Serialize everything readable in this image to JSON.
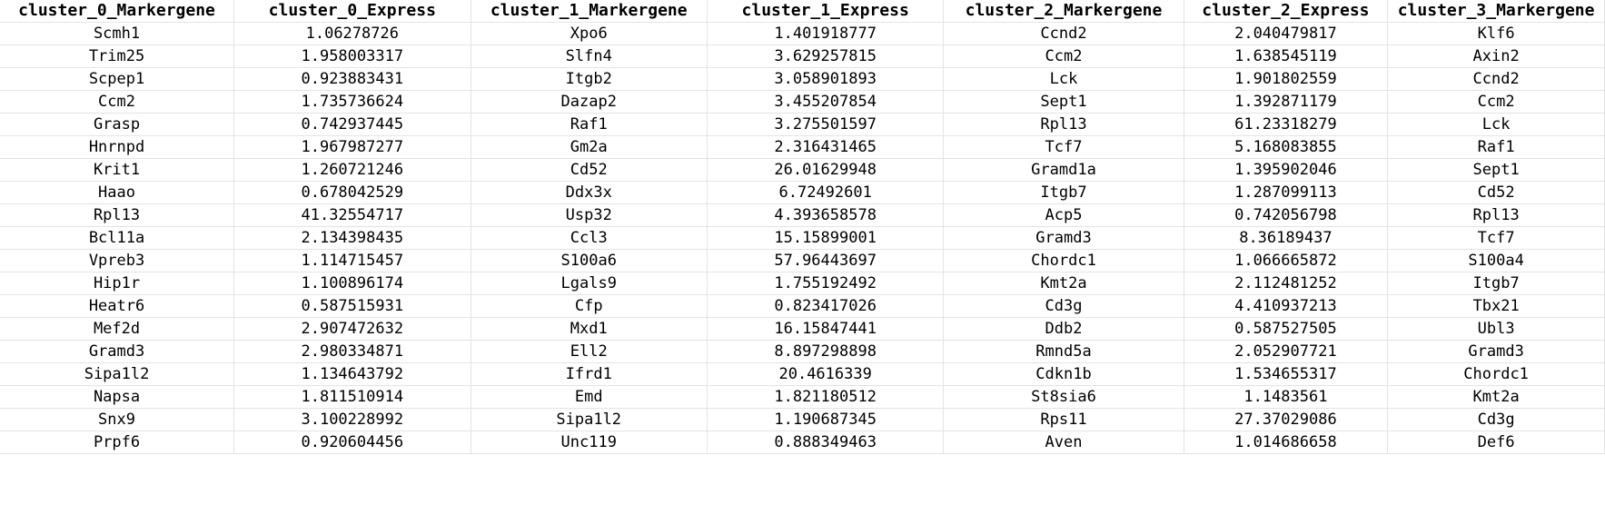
{
  "sheet": {
    "headers": [
      "cluster_0_Markergene",
      "cluster_0_Express",
      "cluster_1_Markergene",
      "cluster_1_Express",
      "cluster_2_Markergene",
      "cluster_2_Express",
      "cluster_3_Markergene"
    ],
    "rows": [
      [
        "Scmh1",
        "1.06278726",
        "Xpo6",
        "1.401918777",
        "Ccnd2",
        "2.040479817",
        "Klf6"
      ],
      [
        "Trim25",
        "1.958003317",
        "Slfn4",
        "3.629257815",
        "Ccm2",
        "1.638545119",
        "Axin2"
      ],
      [
        "Scpep1",
        "0.923883431",
        "Itgb2",
        "3.058901893",
        "Lck",
        "1.901802559",
        "Ccnd2"
      ],
      [
        "Ccm2",
        "1.735736624",
        "Dazap2",
        "3.455207854",
        "Sept1",
        "1.392871179",
        "Ccm2"
      ],
      [
        "Grasp",
        "0.742937445",
        "Raf1",
        "3.275501597",
        "Rpl13",
        "61.23318279",
        "Lck"
      ],
      [
        "Hnrnpd",
        "1.967987277",
        "Gm2a",
        "2.316431465",
        "Tcf7",
        "5.168083855",
        "Raf1"
      ],
      [
        "Krit1",
        "1.260721246",
        "Cd52",
        "26.01629948",
        "Gramd1a",
        "1.395902046",
        "Sept1"
      ],
      [
        "Haao",
        "0.678042529",
        "Ddx3x",
        "6.72492601",
        "Itgb7",
        "1.287099113",
        "Cd52"
      ],
      [
        "Rpl13",
        "41.32554717",
        "Usp32",
        "4.393658578",
        "Acp5",
        "0.742056798",
        "Rpl13"
      ],
      [
        "Bcl11a",
        "2.134398435",
        "Ccl3",
        "15.15899001",
        "Gramd3",
        "8.36189437",
        "Tcf7"
      ],
      [
        "Vpreb3",
        "1.114715457",
        "S100a6",
        "57.96443697",
        "Chordc1",
        "1.066665872",
        "S100a4"
      ],
      [
        "Hip1r",
        "1.100896174",
        "Lgals9",
        "1.755192492",
        "Kmt2a",
        "2.112481252",
        "Itgb7"
      ],
      [
        "Heatr6",
        "0.587515931",
        "Cfp",
        "0.823417026",
        "Cd3g",
        "4.410937213",
        "Tbx21"
      ],
      [
        "Mef2d",
        "2.907472632",
        "Mxd1",
        "16.15847441",
        "Ddb2",
        "0.587527505",
        "Ubl3"
      ],
      [
        "Gramd3",
        "2.980334871",
        "Ell2",
        "8.897298898",
        "Rmnd5a",
        "2.052907721",
        "Gramd3"
      ],
      [
        "Sipa1l2",
        "1.134643792",
        "Ifrd1",
        "20.4616339",
        "Cdkn1b",
        "1.534655317",
        "Chordc1"
      ],
      [
        "Napsa",
        "1.811510914",
        "Emd",
        "1.821180512",
        "St8sia6",
        "1.1483561",
        "Kmt2a"
      ],
      [
        "Snx9",
        "3.100228992",
        "Sipa1l2",
        "1.190687345",
        "Rps11",
        "27.37029086",
        "Cd3g"
      ],
      [
        "Prpf6",
        "0.920604456",
        "Unc119",
        "0.888349463",
        "Aven",
        "1.014686658",
        "Def6"
      ]
    ]
  }
}
